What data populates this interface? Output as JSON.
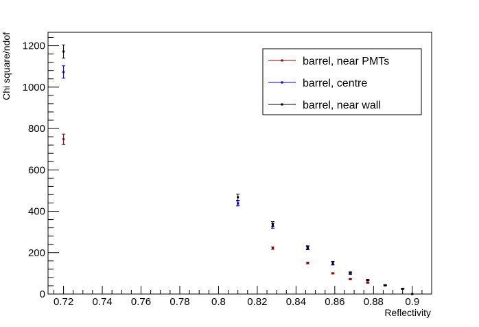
{
  "chart_data": {
    "type": "scatter",
    "title": "",
    "xlabel": "Reflectivity",
    "ylabel": "Chi square/ndof",
    "xlim": [
      0.712,
      0.91
    ],
    "ylim": [
      0,
      1265
    ],
    "xticks": [
      "0.72",
      "0.74",
      "0.76",
      "0.78",
      "0.8",
      "0.82",
      "0.84",
      "0.86",
      "0.88",
      "0.9"
    ],
    "yticks": [
      "0",
      "200",
      "400",
      "600",
      "800",
      "1000",
      "1200"
    ],
    "grid": false,
    "legend_position": "top-right",
    "series": [
      {
        "name": "barrel, near PMTs",
        "color": "#8b0000",
        "x": [
          0.72,
          0.81,
          0.828,
          0.846,
          0.859,
          0.868,
          0.877,
          0.886,
          0.895,
          0.9
        ],
        "y": [
          748,
          438,
          222,
          150,
          100,
          72,
          55,
          42,
          25,
          0
        ],
        "err": [
          25,
          12,
          6,
          4,
          3,
          2,
          2,
          1,
          1,
          0
        ]
      },
      {
        "name": "barrel, centre",
        "color": "#0000cc",
        "x": [
          0.72,
          0.81,
          0.828,
          0.846,
          0.859,
          0.868,
          0.877,
          0.886,
          0.895,
          0.9
        ],
        "y": [
          1073,
          438,
          330,
          222,
          148,
          100,
          68,
          42,
          25,
          0
        ],
        "err": [
          30,
          12,
          12,
          8,
          8,
          5,
          3,
          2,
          1,
          0
        ]
      },
      {
        "name": "barrel, near wall",
        "color": "#000000",
        "x": [
          0.72,
          0.81,
          0.828,
          0.846,
          0.859,
          0.868,
          0.877,
          0.886,
          0.895,
          0.9
        ],
        "y": [
          1172,
          468,
          338,
          225,
          150,
          102,
          67,
          42,
          25,
          0
        ],
        "err": [
          32,
          15,
          12,
          8,
          8,
          5,
          3,
          2,
          1,
          0
        ]
      }
    ]
  }
}
